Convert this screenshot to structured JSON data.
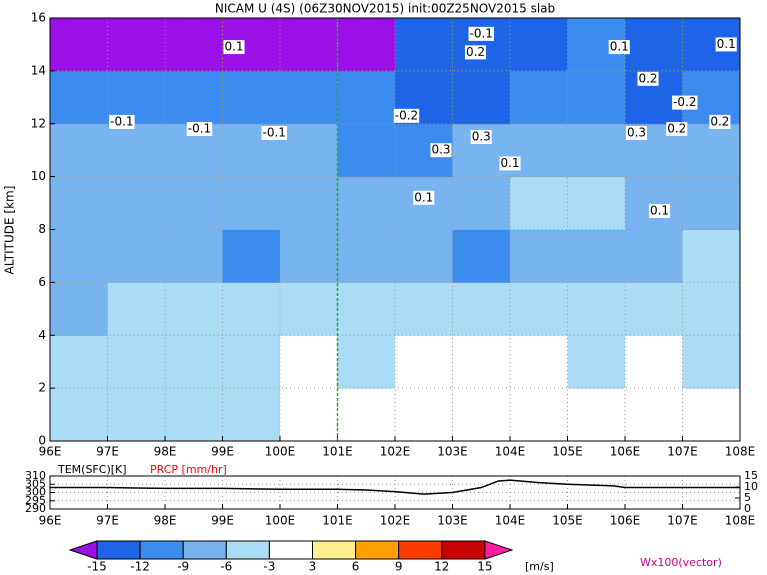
{
  "chart_data": [
    {
      "type": "contour",
      "title": "NICAM U (4S) (06Z30NOV2015) init:00Z25NOV2015 slab",
      "y_label": "ALTITUDE [km]",
      "xlim": [
        96,
        108
      ],
      "xticks": [
        {
          "value": 96,
          "label": "96E"
        },
        {
          "value": 97,
          "label": "97E"
        },
        {
          "value": 98,
          "label": "98E"
        },
        {
          "value": 99,
          "label": "99E"
        },
        {
          "value": 100,
          "label": "100E"
        },
        {
          "value": 101,
          "label": "101E"
        },
        {
          "value": 102,
          "label": "102E"
        },
        {
          "value": 103,
          "label": "103E"
        },
        {
          "value": 104,
          "label": "104E"
        },
        {
          "value": 105,
          "label": "105E"
        },
        {
          "value": 106,
          "label": "106E"
        },
        {
          "value": 107,
          "label": "107E"
        },
        {
          "value": 108,
          "label": "108E"
        }
      ],
      "ylim": [
        0,
        16
      ],
      "yticks": [
        0,
        2,
        4,
        6,
        8,
        10,
        12,
        14,
        16
      ],
      "grid": true,
      "marker_x": 101,
      "u_field": {
        "x": [
          96.5,
          97.5,
          98.5,
          99.5,
          100.5,
          101.5,
          102.5,
          103.5,
          104.5,
          105.5,
          106.5,
          107.5
        ],
        "y": [
          1,
          3,
          5,
          7,
          9,
          11,
          13,
          15
        ],
        "values": [
          [
            -6,
            -5,
            -4,
            -5,
            -3,
            -2,
            -3,
            -2,
            -1,
            -2,
            -2,
            -3
          ],
          [
            -6,
            -5,
            -6,
            -4,
            -3,
            -4,
            -2,
            -2,
            -1,
            -4,
            -1,
            -4
          ],
          [
            -7,
            -6,
            -5,
            -5,
            -4,
            -4,
            -4,
            -4,
            -5,
            -4,
            -4,
            -5
          ],
          [
            -9,
            -8,
            -9,
            -10,
            -8,
            -7,
            -8,
            -10,
            -7,
            -8,
            -7,
            -6
          ],
          [
            -8,
            -7,
            -8,
            -7,
            -7,
            -8,
            -9,
            -7,
            -5,
            -6,
            -8,
            -7
          ],
          [
            -8,
            -9,
            -8,
            -8,
            -9,
            -10,
            -11,
            -8,
            -7,
            -8,
            -9,
            -8
          ],
          [
            -10,
            -11,
            -12,
            -11,
            -11,
            -12,
            -13,
            -13,
            -11,
            -12,
            -13,
            -12
          ],
          [
            -16,
            -16,
            -16,
            -16,
            -16,
            -16,
            -13,
            -13,
            -13,
            -12,
            -13,
            -14
          ]
        ]
      },
      "contour_labels": [
        {
          "x": 97.25,
          "y": 12.07,
          "value": -0.1
        },
        {
          "x": 98.6,
          "y": 11.8,
          "value": -0.1
        },
        {
          "x": 99.9,
          "y": 11.65,
          "value": -0.1
        },
        {
          "x": 99.2,
          "y": 14.9,
          "value": 0.1
        },
        {
          "x": 102.2,
          "y": 12.3,
          "value": -0.2
        },
        {
          "x": 103.5,
          "y": 15.4,
          "value": -0.1
        },
        {
          "x": 103.4,
          "y": 14.7,
          "value": 0.2
        },
        {
          "x": 103.5,
          "y": 11.5,
          "value": 0.3
        },
        {
          "x": 102.8,
          "y": 11.0,
          "value": 0.3
        },
        {
          "x": 104.0,
          "y": 10.5,
          "value": 0.1
        },
        {
          "x": 102.5,
          "y": 9.2,
          "value": 0.1
        },
        {
          "x": 105.9,
          "y": 14.9,
          "value": 0.1
        },
        {
          "x": 106.4,
          "y": 13.7,
          "value": 0.2
        },
        {
          "x": 106.2,
          "y": 11.65,
          "value": 0.3
        },
        {
          "x": 106.9,
          "y": 11.8,
          "value": 0.2
        },
        {
          "x": 106.6,
          "y": 8.7,
          "value": 0.1
        },
        {
          "x": 107.04,
          "y": 12.8,
          "value": -0.2
        },
        {
          "x": 107.76,
          "y": 15.0,
          "value": 0.1
        },
        {
          "x": 107.65,
          "y": 12.07,
          "value": 0.2
        }
      ],
      "colorbar": {
        "levels": [
          -15,
          -12,
          -9,
          -6,
          -3,
          3,
          6,
          9,
          12,
          15
        ],
        "colors": [
          "#9a10e6",
          "#1e64e6",
          "#3c8cf0",
          "#78b4f0",
          "#aadcf5",
          "#ffffff",
          "#ffee90",
          "#ffa000",
          "#ff3c00",
          "#c80000",
          "#ff1ea0"
        ],
        "unit": "[m/s]"
      },
      "vector_label": "Wx100(vector)"
    },
    {
      "type": "line",
      "xlim": [
        96,
        108
      ],
      "xticks": [
        {
          "value": 96,
          "label": "96E"
        },
        {
          "value": 97,
          "label": "97E"
        },
        {
          "value": 98,
          "label": "98E"
        },
        {
          "value": 99,
          "label": "99E"
        },
        {
          "value": 100,
          "label": "100E"
        },
        {
          "value": 101,
          "label": "101E"
        },
        {
          "value": 102,
          "label": "102E"
        },
        {
          "value": 103,
          "label": "103E"
        },
        {
          "value": 104,
          "label": "104E"
        },
        {
          "value": 105,
          "label": "105E"
        },
        {
          "value": 106,
          "label": "106E"
        },
        {
          "value": 107,
          "label": "107E"
        },
        {
          "value": 108,
          "label": "108E"
        }
      ],
      "ylim": [
        290,
        310
      ],
      "yticks": [
        290,
        295,
        300,
        305,
        310
      ],
      "y2lim": [
        0,
        15
      ],
      "y2ticks": [
        0,
        5,
        10,
        15
      ],
      "grid": true,
      "series": [
        {
          "name": "TEM(SFC)[K]",
          "color": "#000000",
          "x": [
            96,
            97,
            98,
            99,
            100,
            101,
            101.5,
            102,
            102.5,
            103,
            103.5,
            103.8,
            104,
            104.5,
            105,
            105.8,
            106,
            107,
            108
          ],
          "values": [
            303,
            303,
            302.5,
            302.5,
            302,
            302,
            301.5,
            300.5,
            299,
            300,
            303,
            307,
            307.5,
            306,
            305,
            304,
            303,
            303,
            303
          ]
        },
        {
          "name": "PRCP [mm/hr]",
          "color": "#ff0000",
          "axis": "y2",
          "x": [
            96,
            108
          ],
          "values": [
            0,
            0
          ]
        }
      ]
    }
  ]
}
